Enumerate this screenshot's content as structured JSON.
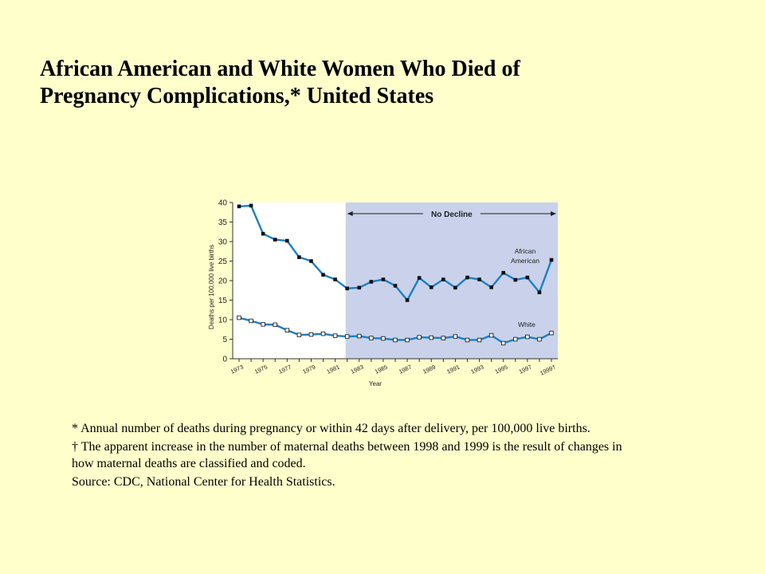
{
  "slide": {
    "title_line1": "African American and White Women Who Died of",
    "title_line2": "Pregnancy Complications,* United States"
  },
  "footnotes": {
    "asterisk": "* Annual number of deaths during pregnancy or within 42 days after delivery, per 100,000 live births.",
    "dagger": "† The apparent increase in the number of maternal deaths between 1998 and 1999 is the result of changes in how maternal deaths are classified and coded.",
    "source": "Source: CDC, National Center for Health Statistics."
  },
  "colors": {
    "background": "#ffffcc",
    "plot_background": "#ffffff",
    "shaded_region": "#c9d2ea",
    "line": "#1c7fc4",
    "marker_filled": "#111111",
    "marker_open": "#ffffff"
  },
  "chart_data": {
    "type": "line",
    "xlabel": "Year",
    "ylabel": "Deaths per 100,000 live births",
    "ylim": [
      0,
      40
    ],
    "yticks": [
      0,
      5,
      10,
      15,
      20,
      25,
      30,
      35,
      40
    ],
    "xlim": [
      1973,
      1999
    ],
    "xticks": [
      1973,
      1975,
      1977,
      1979,
      1981,
      1983,
      1985,
      1987,
      1989,
      1991,
      1993,
      1995,
      1997,
      1999
    ],
    "xtick_labels": [
      "1973",
      "1975",
      "1977",
      "1979",
      "1981",
      "1983",
      "1985",
      "1987",
      "1989",
      "1991",
      "1993",
      "1995",
      "1997",
      "1999†"
    ],
    "x": [
      1973,
      1974,
      1975,
      1976,
      1977,
      1978,
      1979,
      1980,
      1981,
      1982,
      1983,
      1984,
      1985,
      1986,
      1987,
      1988,
      1989,
      1990,
      1991,
      1992,
      1993,
      1994,
      1995,
      1996,
      1997,
      1998,
      1999
    ],
    "series": [
      {
        "name": "African American",
        "label_lines": [
          "African",
          "American"
        ],
        "marker": "filled",
        "values": [
          39,
          39.2,
          32,
          30.5,
          30.2,
          26,
          25,
          21.5,
          20.3,
          18,
          18.2,
          19.7,
          20.3,
          18.7,
          15,
          20.7,
          18.3,
          20.3,
          18.2,
          20.8,
          20.3,
          18.3,
          22,
          20.2,
          20.8,
          17,
          25.3
        ]
      },
      {
        "name": "White",
        "label_lines": [
          "White"
        ],
        "marker": "open",
        "values": [
          10.5,
          9.7,
          8.8,
          8.7,
          7.3,
          6.1,
          6.2,
          6.4,
          5.9,
          5.7,
          5.8,
          5.3,
          5.2,
          4.8,
          4.8,
          5.5,
          5.4,
          5.3,
          5.7,
          4.8,
          4.8,
          6,
          4,
          5,
          5.6,
          5,
          6.6
        ]
      }
    ],
    "annotations": [
      {
        "text": "No Decline",
        "type": "shaded-range",
        "from": 1982,
        "to": 1999
      }
    ],
    "grid": false,
    "legend": "none"
  }
}
